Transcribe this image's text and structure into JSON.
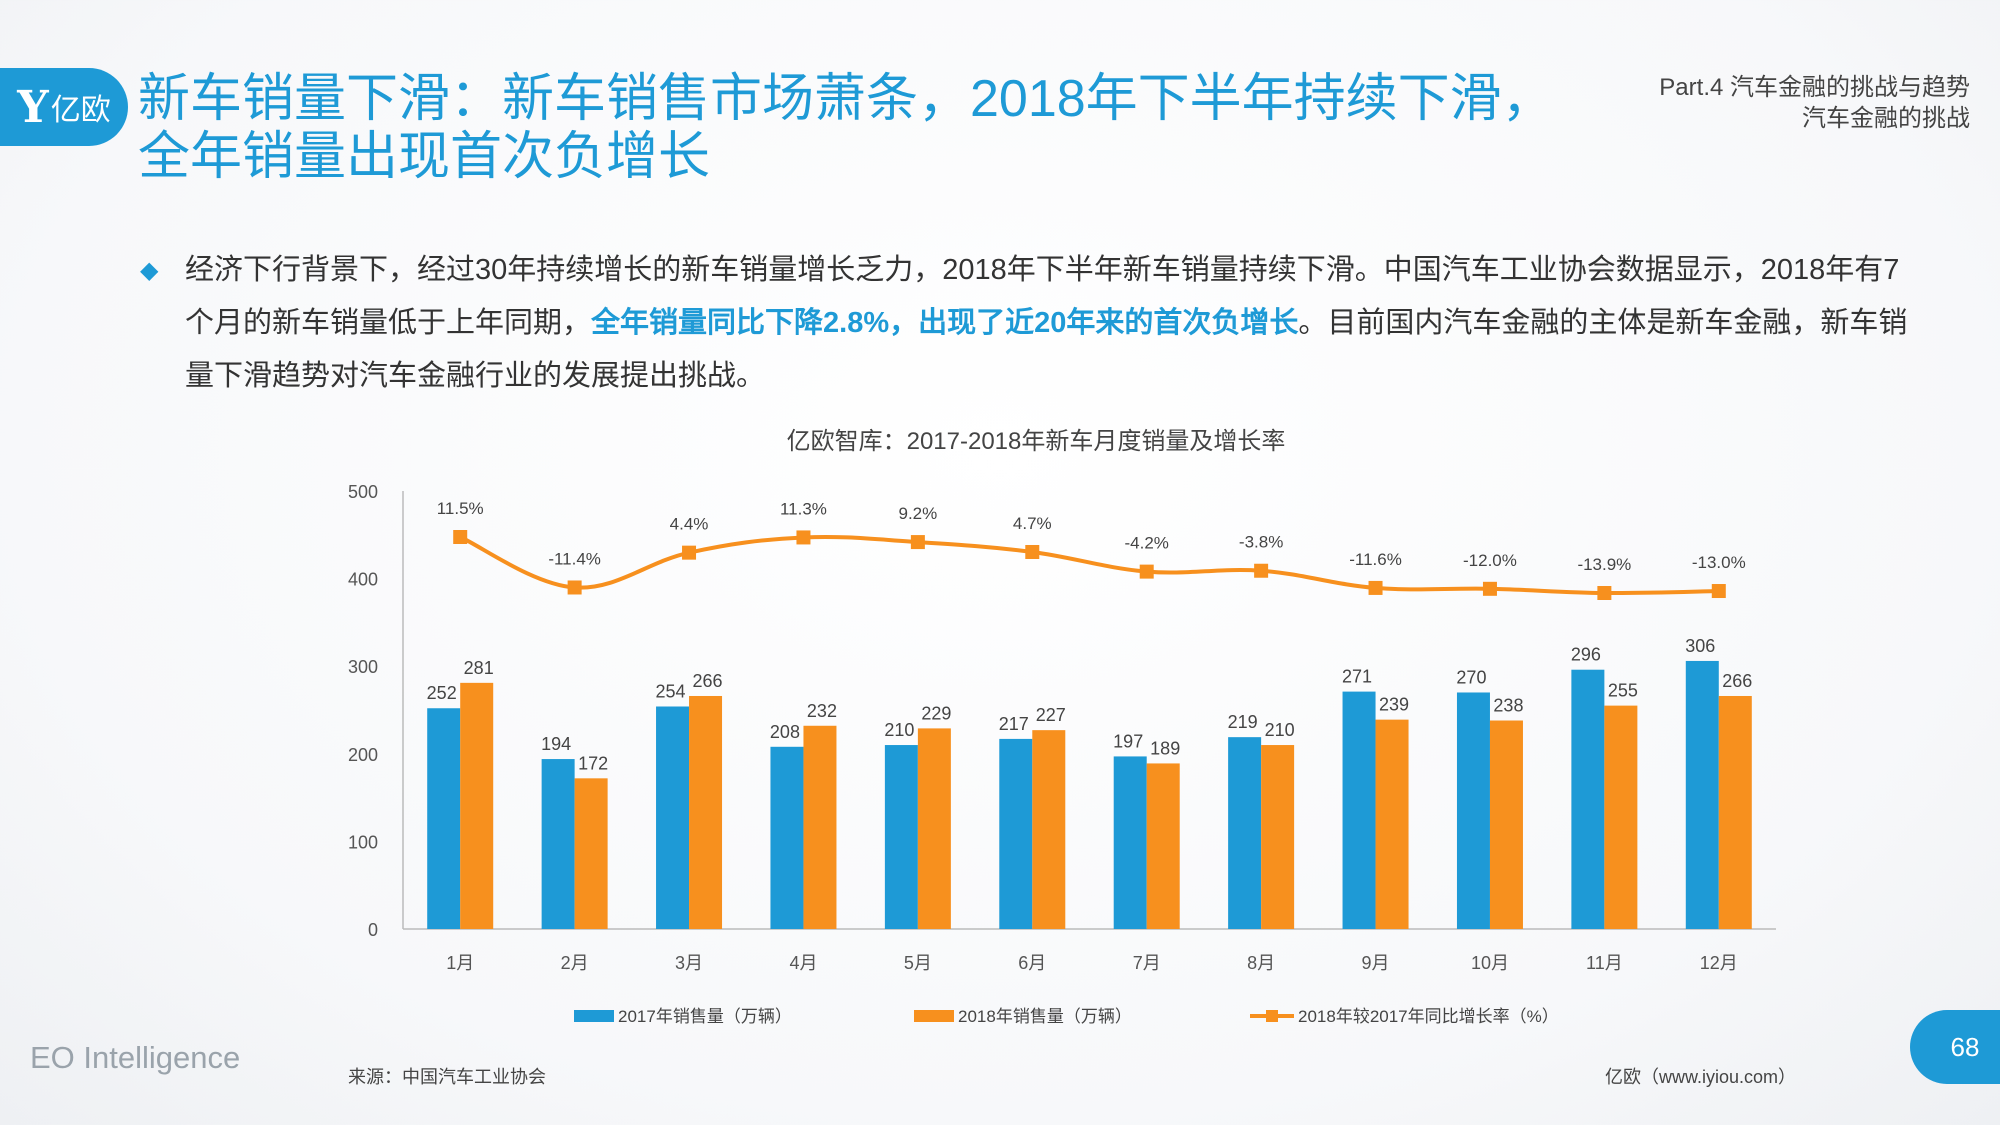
{
  "header": {
    "logo_text": "亿欧",
    "title_line1": "新车销量下滑：新车销售市场萧条，2018年下半年持续下滑，",
    "title_line2": "全年销量出现首次负增长",
    "part_line1": "Part.4 汽车金融的挑战与趋势",
    "part_line2": "汽车金融的挑战"
  },
  "bullet": {
    "part1": "经济下行背景下，经过30年持续增长的新车销量增长乏力，2018年下半年新车销量持续下滑。中国汽车工业协会数据显示，2018年有7个月的新车销量低于上年同期，",
    "highlight": "全年销量同比下降2.8%，出现了近20年来的首次负增长",
    "part2": "。目前国内汽车金融的主体是新车金融，新车销量下滑趋势对汽车金融行业的发展提出挑战。"
  },
  "chart_data": {
    "type": "bar",
    "title": "亿欧智库：2017-2018年新车月度销量及增长率",
    "categories": [
      "1月",
      "2月",
      "3月",
      "4月",
      "5月",
      "6月",
      "7月",
      "8月",
      "9月",
      "10月",
      "11月",
      "12月"
    ],
    "ylim": [
      0,
      500
    ],
    "yticks": [
      0,
      100,
      200,
      300,
      400,
      500
    ],
    "series": [
      {
        "name": "2017年销售量（万辆）",
        "type": "bar",
        "color": "#1e9ad6",
        "values": [
          252,
          194,
          254,
          208,
          210,
          217,
          197,
          219,
          271,
          270,
          296,
          306
        ]
      },
      {
        "name": "2018年销售量（万辆）",
        "type": "bar",
        "color": "#f7901e",
        "values": [
          281,
          172,
          266,
          232,
          229,
          227,
          189,
          210,
          239,
          238,
          255,
          266
        ]
      },
      {
        "name": "2018年较2017年同比增长率（%）",
        "type": "line",
        "color": "#f7901e",
        "values": [
          11.5,
          -11.4,
          4.4,
          11.3,
          9.2,
          4.7,
          -4.2,
          -3.8,
          -11.6,
          -12.0,
          -13.9,
          -13.0
        ],
        "labels": [
          "11.5%",
          "-11.4%",
          "4.4%",
          "11.3%",
          "9.2%",
          "4.7%",
          "-4.2%",
          "-3.8%",
          "-11.6%",
          "-12.0%",
          "-13.9%",
          "-13.0%"
        ]
      }
    ],
    "legend_position": "bottom",
    "grid": false
  },
  "footer": {
    "brand": "EO Intelligence",
    "source": "来源：中国汽车工业协会",
    "site": "亿欧（www.iyiou.com）",
    "page": "68"
  }
}
